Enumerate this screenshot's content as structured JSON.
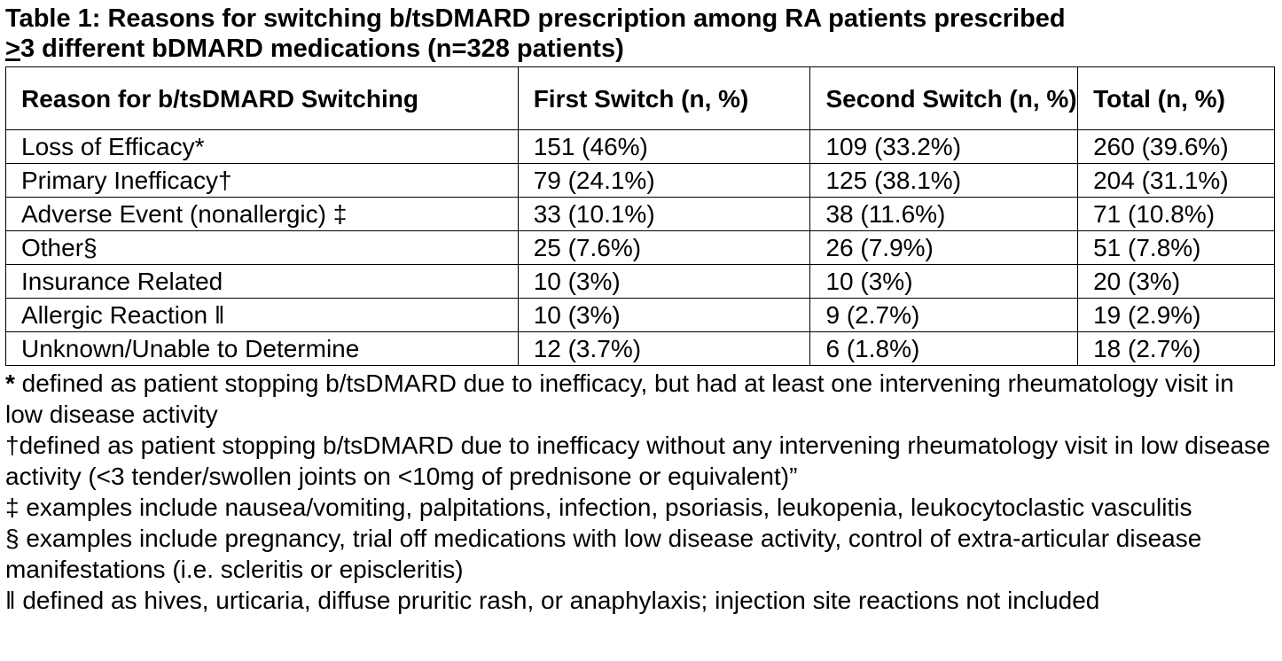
{
  "caption": {
    "line1": "Table 1: Reasons for switching b/tsDMARD prescription among RA patients prescribed",
    "line2_prefix": ">",
    "line2_rest": "3 different bDMARD medications (n=328 patients)"
  },
  "table": {
    "headers": {
      "reason": "Reason for b/tsDMARD Switching",
      "first": "First Switch (n, %)",
      "second": "Second Switch (n, %)",
      "total": "Total (n, %)"
    },
    "rows": [
      [
        "Loss of Efficacy*",
        "151 (46%)",
        "109 (33.2%)",
        "260 (39.6%)"
      ],
      [
        "Primary Inefficacy†",
        "79 (24.1%)",
        "125 (38.1%)",
        "204 (31.1%)"
      ],
      [
        "Adverse Event (nonallergic) ‡",
        "33 (10.1%)",
        "38 (11.6%)",
        "71 (10.8%)"
      ],
      [
        "Other§",
        "25 (7.6%)",
        "26 (7.9%)",
        "51 (7.8%)"
      ],
      [
        "Insurance Related",
        "10 (3%)",
        "10 (3%)",
        "20 (3%)"
      ],
      [
        "Allergic Reaction ‖",
        "10 (3%)",
        "9 (2.7%)",
        "19 (2.9%)"
      ],
      [
        "Unknown/Unable to Determine",
        "12 (3.7%)",
        "6 (1.8%)",
        "18 (2.7%)"
      ]
    ]
  },
  "footnotes": {
    "asterisk_mark": "*",
    "asterisk_text": " defined as patient stopping b/tsDMARD due to inefficacy, but had at least one intervening rheumatology visit in low disease activity",
    "dagger": "†defined as patient stopping b/tsDMARD due to inefficacy without any intervening rheumatology visit in low disease activity (<3 tender/swollen joints on <10mg of prednisone or equivalent)”",
    "double_dagger": "‡ examples include nausea/vomiting, palpitations, infection, psoriasis, leukopenia, leukocytoclastic vasculitis",
    "section": "§ examples include pregnancy, trial off medications with low disease activity, control of extra-articular disease manifestations (i.e. scleritis or episcleritis)",
    "parallel": "‖ defined as hives, urticaria, diffuse pruritic rash, or anaphylaxis; injection site reactions not included"
  }
}
